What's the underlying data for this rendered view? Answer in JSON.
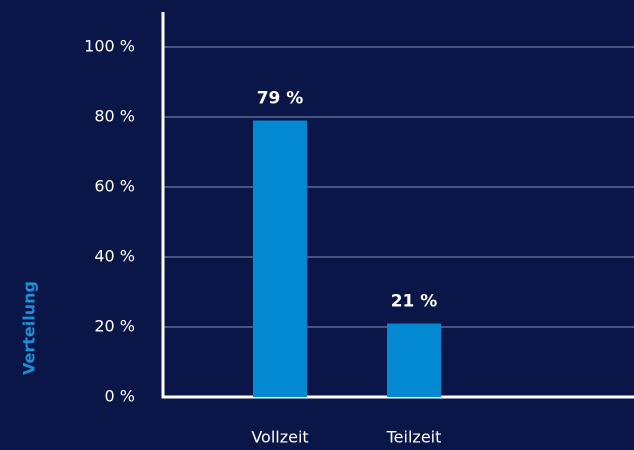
{
  "chart_data": {
    "type": "bar",
    "y_axis_label": "Verteilung",
    "categories": [
      "Vollzeit",
      "Teilzeit"
    ],
    "values": [
      79,
      21
    ],
    "value_labels": [
      "79 %",
      "21 %"
    ],
    "color": "#0389d2",
    "ylim": [
      0,
      100
    ],
    "yticks": [
      {
        "value": 0,
        "label": "0 %"
      },
      {
        "value": 20,
        "label": "20 %"
      },
      {
        "value": 40,
        "label": "40 %"
      },
      {
        "value": 60,
        "label": "60 %"
      },
      {
        "value": 80,
        "label": "80 %"
      },
      {
        "value": 100,
        "label": "100 %"
      }
    ],
    "grid": true
  }
}
